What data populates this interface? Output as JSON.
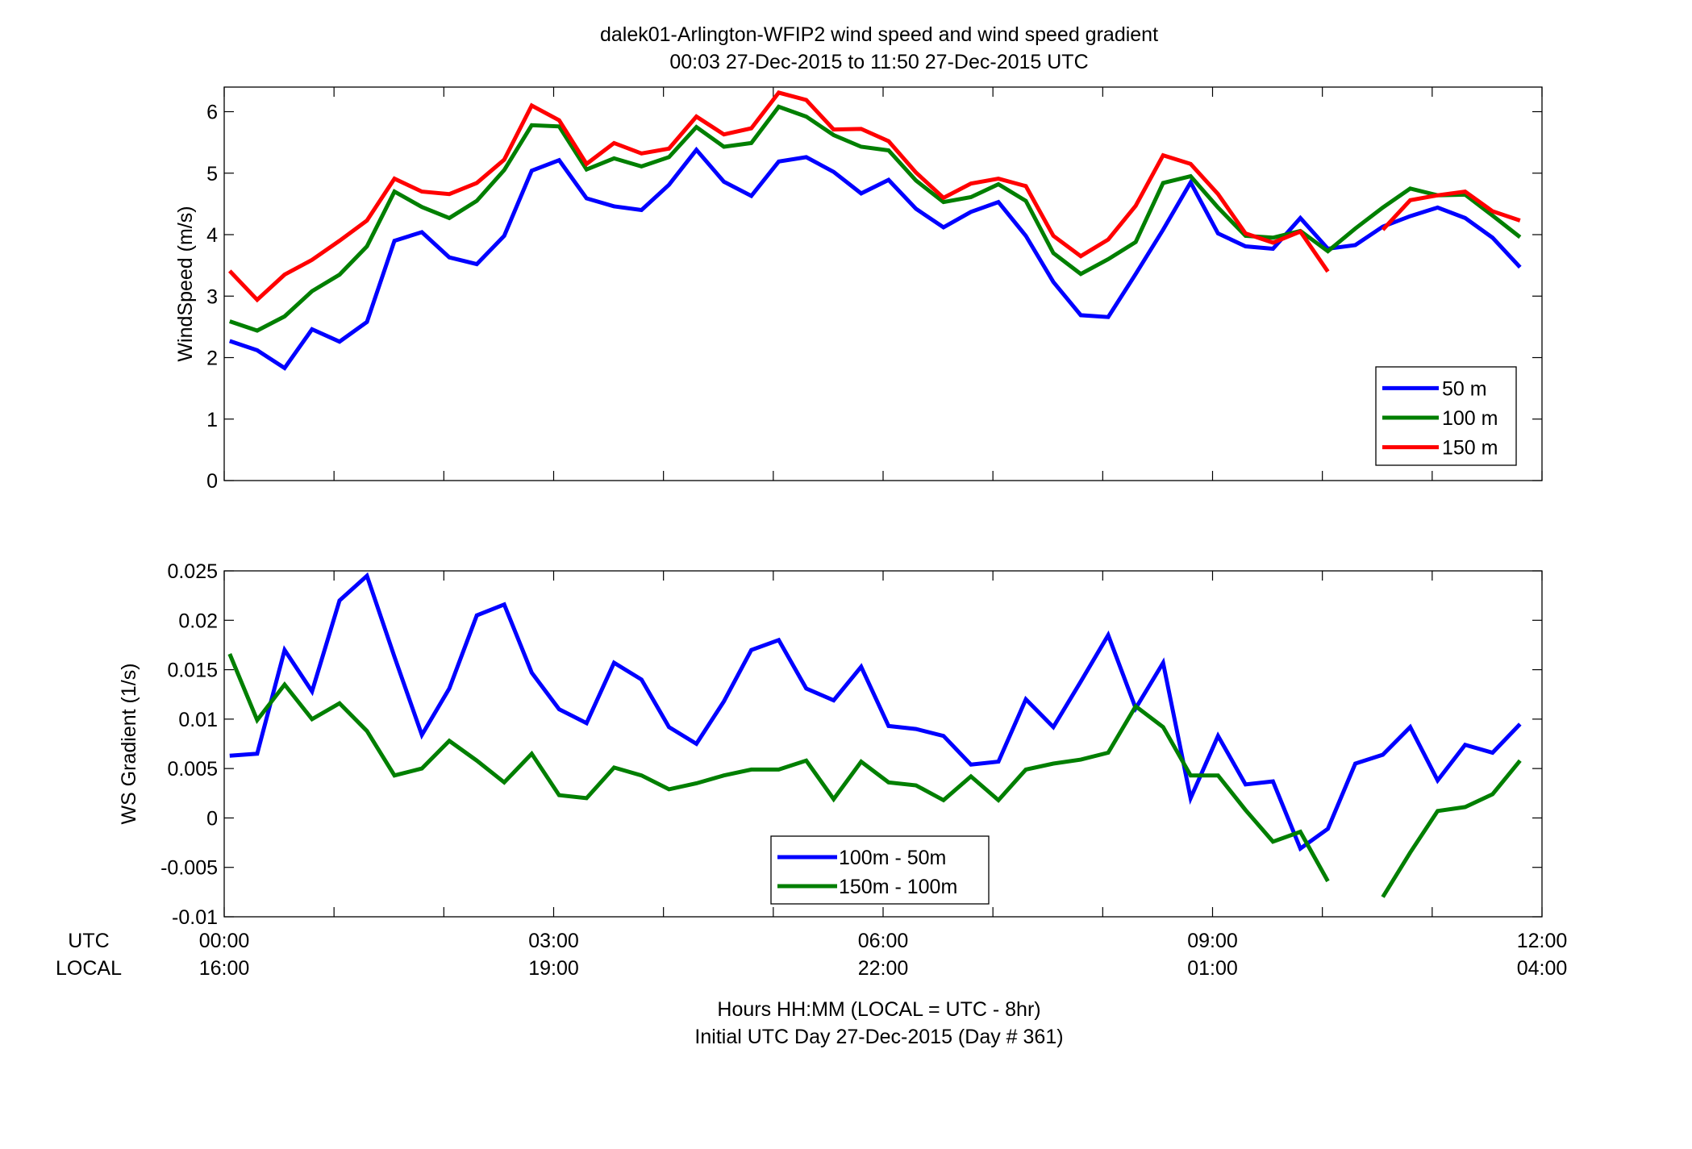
{
  "title_line1": "dalek01-Arlington-WFIP2  wind speed and wind speed gradient",
  "title_line2": "00:03 27-Dec-2015 to 11:50 27-Dec-2015  UTC",
  "row_labels": {
    "utc": "UTC",
    "local": "LOCAL"
  },
  "xlabel_line1": "Hours HH:MM  (LOCAL = UTC - 8hr)",
  "xlabel_line2": "Initial UTC Day 27-Dec-2015 (Day # 361)",
  "utc_ticks": [
    "00:00",
    "03:00",
    "06:00",
    "09:00",
    "12:00"
  ],
  "local_ticks": [
    "16:00",
    "19:00",
    "22:00",
    "01:00",
    "04:00"
  ],
  "colors": {
    "blue": "#0000ff",
    "green": "#007f00",
    "red": "#ff0000"
  },
  "chart_data": [
    {
      "type": "line",
      "ylabel": "WindSpeed (m/s)",
      "xlim": [
        0,
        12
      ],
      "ylim": [
        0,
        6.4
      ],
      "yticks": [
        0,
        1,
        2,
        3,
        4,
        5,
        6
      ],
      "grid": false,
      "legend_position": "bottom-right",
      "x": [
        0.05,
        0.3,
        0.55,
        0.8,
        1.05,
        1.3,
        1.55,
        1.8,
        2.05,
        2.3,
        2.55,
        2.8,
        3.05,
        3.3,
        3.55,
        3.8,
        4.05,
        4.3,
        4.55,
        4.8,
        5.05,
        5.3,
        5.55,
        5.8,
        6.05,
        6.3,
        6.55,
        6.8,
        7.05,
        7.3,
        7.55,
        7.8,
        8.05,
        8.3,
        8.55,
        8.8,
        9.05,
        9.3,
        9.55,
        9.8,
        10.05,
        10.3,
        10.55,
        10.8,
        11.05,
        11.3,
        11.55,
        11.8
      ],
      "series": [
        {
          "name": "50 m",
          "color": "#0000ff",
          "values": [
            2.27,
            2.12,
            1.83,
            2.46,
            2.26,
            2.58,
            3.9,
            4.04,
            3.63,
            3.52,
            3.98,
            5.04,
            5.21,
            4.59,
            4.46,
            4.4,
            4.81,
            5.38,
            4.86,
            4.63,
            5.19,
            5.26,
            5.02,
            4.67,
            4.89,
            4.42,
            4.12,
            4.37,
            4.53,
            3.98,
            3.23,
            2.69,
            2.66,
            3.36,
            4.08,
            4.85,
            4.02,
            3.81,
            3.77,
            4.27,
            3.77,
            3.83,
            4.13,
            4.3,
            4.44,
            4.27,
            3.95,
            3.47
          ]
        },
        {
          "name": "100 m",
          "color": "#007f00",
          "values": [
            2.59,
            2.44,
            2.67,
            3.08,
            3.35,
            3.81,
            4.7,
            4.45,
            4.27,
            4.55,
            5.05,
            5.78,
            5.76,
            5.06,
            5.24,
            5.11,
            5.26,
            5.75,
            5.43,
            5.49,
            6.08,
            5.92,
            5.62,
            5.43,
            5.37,
            4.88,
            4.53,
            4.61,
            4.82,
            4.55,
            3.7,
            3.36,
            3.6,
            3.88,
            4.84,
            4.95,
            4.44,
            3.98,
            3.95,
            4.06,
            3.73,
            4.1,
            4.44,
            4.75,
            4.64,
            4.65,
            4.31,
            3.96
          ]
        },
        {
          "name": "150 m",
          "color": "#ff0000",
          "values": [
            3.41,
            2.94,
            3.35,
            3.59,
            3.9,
            4.23,
            4.91,
            4.7,
            4.66,
            4.84,
            5.22,
            6.1,
            5.86,
            5.15,
            5.49,
            5.32,
            5.4,
            5.92,
            5.63,
            5.73,
            6.31,
            6.19,
            5.71,
            5.72,
            5.52,
            5.01,
            4.6,
            4.83,
            4.91,
            4.79,
            3.98,
            3.65,
            3.92,
            4.47,
            5.29,
            5.15,
            4.66,
            4.02,
            3.87,
            4.05,
            3.4,
            null,
            4.08,
            4.56,
            4.64,
            4.7,
            4.38,
            4.23
          ]
        }
      ]
    },
    {
      "type": "line",
      "ylabel": "WS Gradient (1/s)",
      "xlim": [
        0,
        12
      ],
      "ylim": [
        -0.01,
        0.025
      ],
      "yticks": [
        -0.01,
        -0.005,
        0,
        0.005,
        0.01,
        0.015,
        0.02,
        0.025
      ],
      "ytick_labels": [
        "-0.01",
        "-0.005",
        "0",
        "0.005",
        "0.01",
        "0.015",
        "0.02",
        "0.025"
      ],
      "grid": false,
      "legend_position": "bottom-center",
      "x": [
        0.05,
        0.3,
        0.55,
        0.8,
        1.05,
        1.3,
        1.55,
        1.8,
        2.05,
        2.3,
        2.55,
        2.8,
        3.05,
        3.3,
        3.55,
        3.8,
        4.05,
        4.3,
        4.55,
        4.8,
        5.05,
        5.3,
        5.55,
        5.8,
        6.05,
        6.3,
        6.55,
        6.8,
        7.05,
        7.3,
        7.55,
        7.8,
        8.05,
        8.3,
        8.55,
        8.8,
        9.05,
        9.3,
        9.55,
        9.8,
        10.05,
        10.3,
        10.55,
        10.8,
        11.05,
        11.3,
        11.55,
        11.8
      ],
      "series": [
        {
          "name": "100m - 50m",
          "color": "#0000ff",
          "values": [
            0.0063,
            0.0065,
            0.017,
            0.0128,
            0.022,
            0.0245,
            0.0163,
            0.0084,
            0.0131,
            0.0205,
            0.0216,
            0.0147,
            0.011,
            0.0096,
            0.0157,
            0.014,
            0.0092,
            0.0075,
            0.0118,
            0.017,
            0.018,
            0.0131,
            0.0119,
            0.0153,
            0.0093,
            0.009,
            0.0083,
            0.0054,
            0.0057,
            0.012,
            0.0092,
            0.0138,
            0.0185,
            0.0111,
            0.0157,
            0.002,
            0.0083,
            0.0034,
            0.0037,
            -0.0031,
            -0.0011,
            0.0055,
            0.0064,
            0.0092,
            0.0038,
            0.0074,
            0.0066,
            0.0095
          ]
        },
        {
          "name": "150m - 100m",
          "color": "#007f00",
          "values": [
            0.0166,
            0.0099,
            0.0135,
            0.01,
            0.0116,
            0.0088,
            0.0043,
            0.005,
            0.0078,
            0.0058,
            0.0036,
            0.0065,
            0.0023,
            0.002,
            0.0051,
            0.0043,
            0.0029,
            0.0035,
            0.0043,
            0.0049,
            0.0049,
            0.0058,
            0.0019,
            0.0057,
            0.0036,
            0.0033,
            0.0018,
            0.0042,
            0.0018,
            0.0049,
            0.0055,
            0.0059,
            0.0066,
            0.0113,
            0.0092,
            0.0043,
            0.0043,
            0.0008,
            -0.0024,
            -0.0014,
            -0.0064,
            null,
            -0.008,
            -0.0035,
            0.0007,
            0.0011,
            0.0024,
            0.0058
          ]
        }
      ]
    }
  ]
}
